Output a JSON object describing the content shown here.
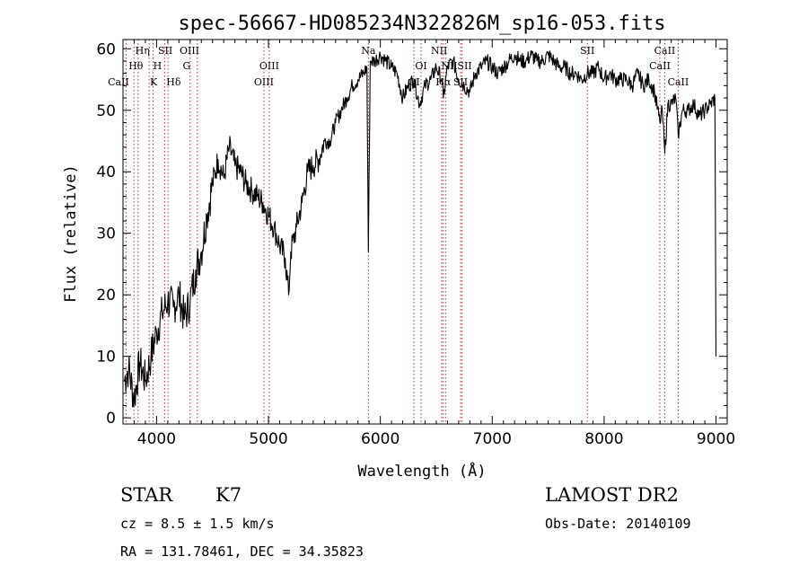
{
  "chart_data": {
    "type": "line",
    "title": "spec-56667-HD085234N322826M_sp16-053.fits",
    "xlabel": "Wavelength (Å)",
    "ylabel": "Flux (relative)",
    "xlim": [
      3700,
      9100
    ],
    "ylim": [
      -1,
      61.5
    ],
    "xticks": [
      4000,
      5000,
      6000,
      7000,
      8000,
      9000
    ],
    "yticks": [
      0,
      10,
      20,
      30,
      40,
      50,
      60
    ],
    "grid": false,
    "line_color": "#000000",
    "marker_color": "#b03030",
    "series": [
      {
        "x": [
          3710,
          3750,
          3800,
          3850,
          3900,
          3950,
          4000,
          4050,
          4100,
          4150,
          4200,
          4250,
          4300,
          4350,
          4400,
          4450,
          4500,
          4550,
          4600,
          4650,
          4700,
          4750,
          4800,
          4850,
          4900,
          4950,
          5000,
          5050,
          5100,
          5150,
          5180,
          5200,
          5250,
          5300,
          5350,
          5400,
          5450,
          5500,
          5550,
          5600,
          5650,
          5700,
          5750,
          5800,
          5850,
          5880,
          5893,
          5910,
          5950,
          6000,
          6050,
          6100,
          6150,
          6200,
          6250,
          6300,
          6350,
          6400,
          6450,
          6500,
          6550,
          6563,
          6600,
          6650,
          6700,
          6750,
          6800,
          6850,
          6900,
          6950,
          7000,
          7050,
          7100,
          7150,
          7200,
          7250,
          7300,
          7350,
          7400,
          7450,
          7500,
          7550,
          7600,
          7650,
          7700,
          7750,
          7800,
          7850,
          7900,
          7950,
          8000,
          8050,
          8100,
          8150,
          8200,
          8250,
          8300,
          8350,
          8400,
          8450,
          8498,
          8520,
          8542,
          8570,
          8600,
          8640,
          8662,
          8700,
          8750,
          8800,
          8850,
          8900,
          8950,
          8990,
          9000
        ],
        "y": [
          6,
          8,
          3,
          9,
          6,
          10,
          14,
          17,
          19,
          18,
          20,
          16,
          19,
          24,
          27,
          33,
          38,
          42,
          39,
          44,
          41,
          40,
          38,
          37,
          36,
          35,
          33,
          31,
          28,
          26,
          20,
          27,
          31,
          35,
          40,
          41,
          42,
          45,
          45,
          48,
          50,
          52,
          54,
          55,
          56,
          57,
          27,
          58,
          58,
          59,
          58,
          57,
          56,
          52,
          54,
          55,
          51,
          54,
          55,
          57,
          55,
          52,
          57,
          58,
          55,
          54,
          53,
          56,
          57,
          58,
          57,
          56,
          57,
          58,
          59,
          58,
          58,
          59,
          58,
          58,
          59,
          58,
          57,
          57,
          56,
          56,
          55,
          56,
          56,
          57,
          55,
          56,
          55,
          55,
          55,
          54,
          56,
          54,
          55,
          53,
          48,
          50,
          43,
          51,
          51,
          52,
          46,
          50,
          50,
          51,
          49,
          50,
          51,
          52,
          10
        ]
      }
    ],
    "spectral_lines": [
      {
        "label": "CaII",
        "x": 3727,
        "row": 3,
        "dx": -0.6
      },
      {
        "label": "Hθ",
        "x": 3798,
        "row": 2,
        "dx": 0.15
      },
      {
        "label": "Hη",
        "x": 3835,
        "row": 1,
        "dx": 0.35
      },
      {
        "label": "K",
        "x": 3934,
        "row": 3,
        "dx": 0.35
      },
      {
        "label": "H",
        "x": 3969,
        "row": 2,
        "dx": 0.35
      },
      {
        "label": "SII",
        "x": 4072,
        "row": 1,
        "dx": 0.05
      },
      {
        "label": "Hδ",
        "x": 4102,
        "row": 3,
        "dx": 0.45
      },
      {
        "label": "OIII",
        "x": 4300,
        "row": 1,
        "dx": -0.05
      },
      {
        "label": "G",
        "x": 4364,
        "row": 2,
        "dx": -0.85
      },
      {
        "label": "OIII",
        "x": 4959,
        "row": 3,
        "dx": 0.0
      },
      {
        "label": "OIII",
        "x": 5007,
        "row": 2,
        "dx": 0.0
      },
      {
        "label": "Na",
        "x": 5893,
        "row": 1,
        "dx": 0.0
      },
      {
        "label": "OI",
        "x": 6300,
        "row": 3,
        "dx": 0.0
      },
      {
        "label": "OI",
        "x": 6364,
        "row": 2,
        "dx": 0.0
      },
      {
        "label": "NII",
        "x": 6548,
        "row": 1,
        "dx": -0.2
      },
      {
        "label": "Hα",
        "x": 6563,
        "row": 3,
        "dx": 0.0
      },
      {
        "label": "NII",
        "x": 6583,
        "row": 2,
        "dx": 0.3
      },
      {
        "label": "SII",
        "x": 6717,
        "row": 3,
        "dx": 0.0
      },
      {
        "label": "SII",
        "x": 6731,
        "row": 2,
        "dx": 0.2
      },
      {
        "label": "SII",
        "x": 7850,
        "row": 1,
        "dx": 0.0
      },
      {
        "label": "CaII",
        "x": 8498,
        "row": 2,
        "dx": 0.0
      },
      {
        "label": "CaII",
        "x": 8542,
        "row": 1,
        "dx": 0.0
      },
      {
        "label": "CaII",
        "x": 8662,
        "row": 3,
        "dx": 0.0
      }
    ]
  },
  "info": {
    "object_class": "STAR",
    "subclass": "K7",
    "survey": "LAMOST DR2",
    "cz": "cz = 8.5 ± 1.5 km/s",
    "obs_date": "Obs-Date: 20140109",
    "coords": "RA = 131.78461, DEC =  34.35823"
  }
}
